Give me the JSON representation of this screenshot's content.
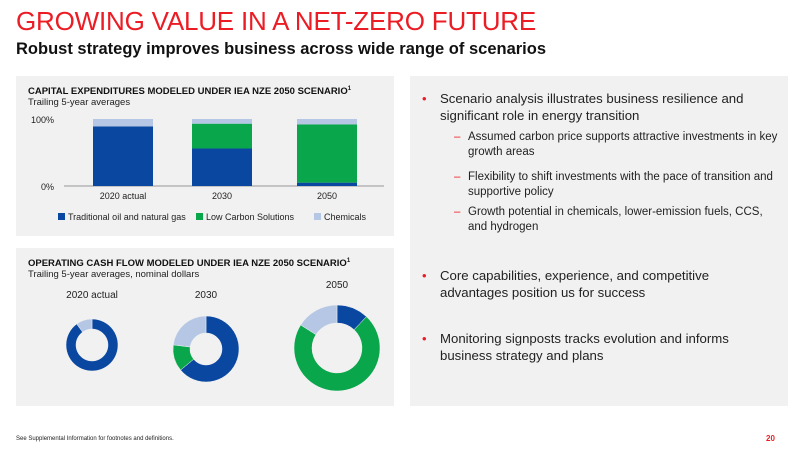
{
  "title": "GROWING VALUE IN A NET-ZERO FUTURE",
  "subtitle": "Robust strategy improves business across wide range of scenarios",
  "capex_panel": {
    "title": "CAPITAL EXPENDITURES MODELED UNDER IEA NZE 2050 SCENARIO",
    "title_sup": "1",
    "subtitle": "Trailing 5-year averages"
  },
  "ocf_panel": {
    "title": "OPERATING CASH FLOW MODELED UNDER IEA NZE 2050 SCENARIO",
    "title_sup": "1",
    "subtitle": "Trailing 5-year averages, nominal dollars"
  },
  "chart_data": [
    {
      "type": "bar",
      "stacked": true,
      "categories": [
        "2020 actual",
        "2030",
        "2050"
      ],
      "series": [
        {
          "name": "Traditional oil and natural gas",
          "color": "#0a47a0",
          "values": [
            89,
            56,
            5
          ]
        },
        {
          "name": "Low Carbon Solutions",
          "color": "#0aa64b",
          "values": [
            0,
            37,
            87
          ]
        },
        {
          "name": "Chemicals",
          "color": "#b5c7e4",
          "values": [
            11,
            7,
            8
          ]
        }
      ],
      "ylim": [
        0,
        100
      ],
      "yticks": [
        "0%",
        "100%"
      ],
      "legend": "bottom"
    },
    {
      "type": "pie",
      "variant": "donut",
      "charts": [
        {
          "label": "2020 actual",
          "slices": [
            {
              "name": "Traditional oil and natural gas",
              "color": "#0a47a0",
              "value": 90
            },
            {
              "name": "Chemicals",
              "color": "#b5c7e4",
              "value": 10
            }
          ]
        },
        {
          "label": "2030",
          "slices": [
            {
              "name": "Traditional oil and natural gas",
              "color": "#0a47a0",
              "value": 64
            },
            {
              "name": "Low Carbon Solutions",
              "color": "#0aa64b",
              "value": 13
            },
            {
              "name": "Chemicals",
              "color": "#b5c7e4",
              "value": 23
            }
          ]
        },
        {
          "label": "2050",
          "slices": [
            {
              "name": "Traditional oil and natural gas",
              "color": "#0a47a0",
              "value": 12
            },
            {
              "name": "Low Carbon Solutions",
              "color": "#0aa64b",
              "value": 72
            },
            {
              "name": "Chemicals",
              "color": "#b5c7e4",
              "value": 16
            }
          ]
        }
      ]
    }
  ],
  "bullets": [
    {
      "text": "Scenario analysis illustrates business resilience and significant role in energy transition",
      "subs": [
        "Assumed carbon price supports attractive investments in key growth areas",
        "Flexibility to shift investments with the pace of transition and supportive policy",
        "Growth potential in chemicals, lower-emission fuels, CCS, and hydrogen"
      ]
    },
    {
      "text": "Core capabilities, experience, and competitive advantages position us for success",
      "subs": []
    },
    {
      "text": "Monitoring signposts tracks evolution and informs business strategy and plans",
      "subs": []
    }
  ],
  "bullet_marker": "•",
  "sub_marker": "–",
  "footnote": "See Supplemental Information for footnotes and definitions.",
  "page_number": "20"
}
